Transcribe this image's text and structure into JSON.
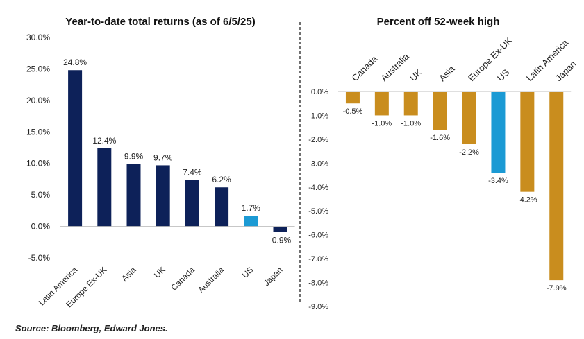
{
  "chart_data": [
    {
      "type": "bar",
      "title": "Year-to-date total returns (as of 6/5/25)",
      "categories": [
        "Latin America",
        "Europe Ex-UK",
        "Asia",
        "UK",
        "Canada",
        "Australia",
        "US",
        "Japan"
      ],
      "values": [
        24.8,
        12.4,
        9.9,
        9.7,
        7.4,
        6.2,
        1.7,
        -0.9
      ],
      "value_labels": [
        "24.8%",
        "12.4%",
        "9.9%",
        "9.7%",
        "7.4%",
        "6.2%",
        "1.7%",
        "-0.9%"
      ],
      "ylim": [
        -5,
        30
      ],
      "yticks": [
        30,
        25,
        20,
        15,
        10,
        5,
        0,
        -5
      ],
      "ytick_labels": [
        "30.0%",
        "25.0%",
        "20.0%",
        "15.0%",
        "10.0%",
        "5.0%",
        "0.0%",
        "-5.0%"
      ],
      "xlabel": "",
      "ylabel": "",
      "grid": false,
      "colors": [
        "#0d2159",
        "#0d2159",
        "#0d2159",
        "#0d2159",
        "#0d2159",
        "#0d2159",
        "#1b9ad4",
        "#0d2159"
      ]
    },
    {
      "type": "bar",
      "title": "Percent off 52-week high",
      "categories": [
        "Canada",
        "Australia",
        "UK",
        "Asia",
        "Europe Ex-UK",
        "US",
        "Latin America",
        "Japan"
      ],
      "values": [
        -0.5,
        -1.0,
        -1.0,
        -1.6,
        -2.2,
        -3.4,
        -4.2,
        -7.9
      ],
      "value_labels": [
        "-0.5%",
        "-1.0%",
        "-1.0%",
        "-1.6%",
        "-2.2%",
        "-3.4%",
        "-4.2%",
        "-7.9%"
      ],
      "ylim": [
        -9,
        0
      ],
      "yticks": [
        0,
        -1,
        -2,
        -3,
        -4,
        -5,
        -6,
        -7,
        -8,
        -9
      ],
      "ytick_labels": [
        "0.0%",
        "-1.0%",
        "-2.0%",
        "-3.0%",
        "-4.0%",
        "-5.0%",
        "-6.0%",
        "-7.0%",
        "-8.0%",
        "-9.0%"
      ],
      "xlabel": "",
      "ylabel": "",
      "grid": false,
      "category_axis": "top",
      "colors": [
        "#c98d1e",
        "#c98d1e",
        "#c98d1e",
        "#c98d1e",
        "#c98d1e",
        "#1b9ad4",
        "#c98d1e",
        "#c98d1e"
      ]
    }
  ],
  "source": "Source: Bloomberg, Edward Jones."
}
